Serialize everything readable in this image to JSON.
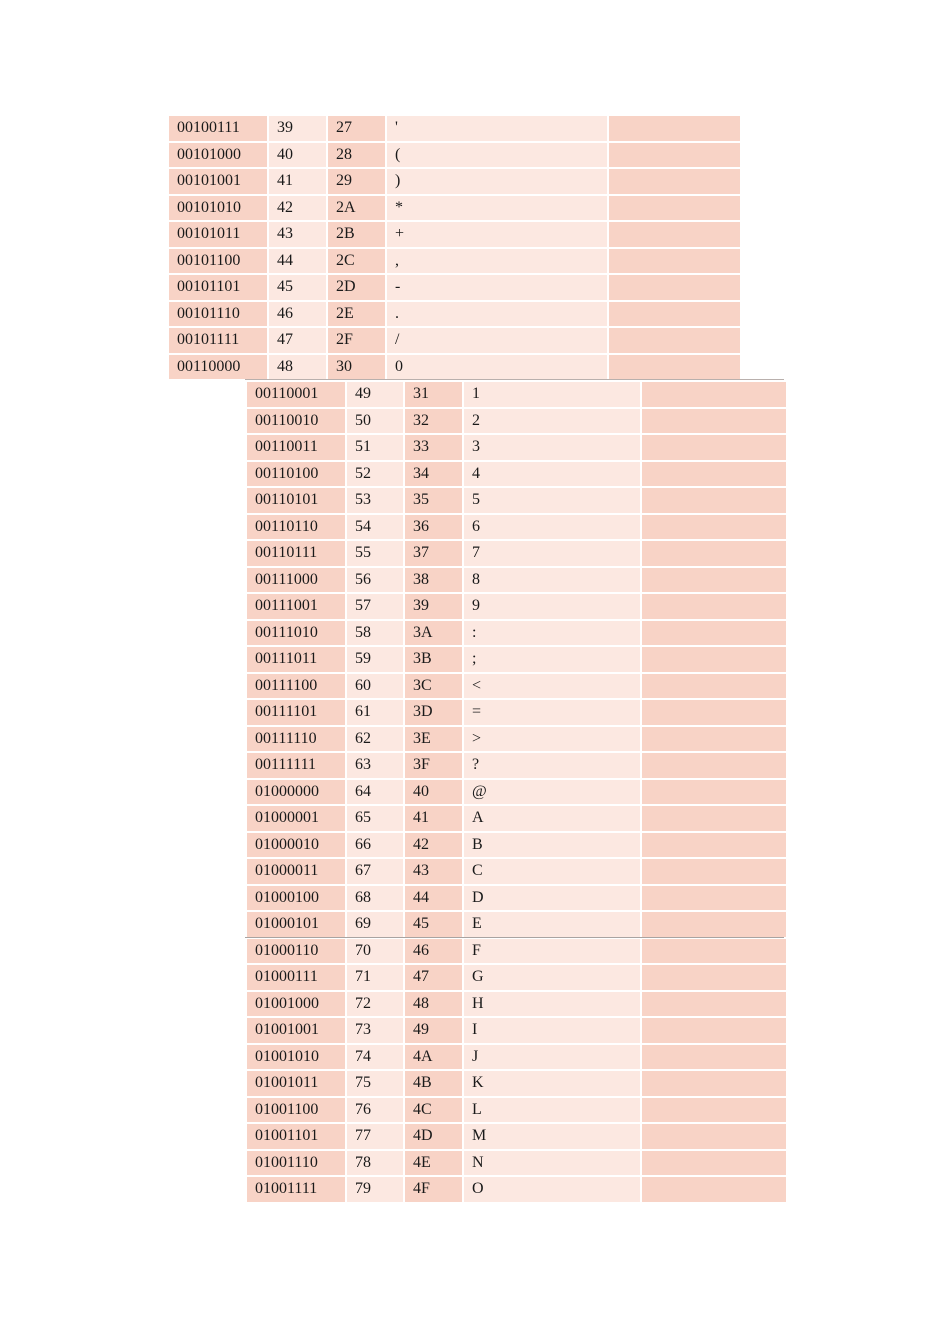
{
  "tables": [
    {
      "rows": [
        {
          "bin": "00100111",
          "dec": "39",
          "hex": "27",
          "chr": "'"
        },
        {
          "bin": "00101000",
          "dec": "40",
          "hex": "28",
          "chr": "("
        },
        {
          "bin": "00101001",
          "dec": "41",
          "hex": "29",
          "chr": ")"
        },
        {
          "bin": "00101010",
          "dec": "42",
          "hex": "2A",
          "chr": "*"
        },
        {
          "bin": "00101011",
          "dec": "43",
          "hex": "2B",
          "chr": "+"
        },
        {
          "bin": "00101100",
          "dec": "44",
          "hex": "2C",
          "chr": ","
        },
        {
          "bin": "00101101",
          "dec": "45",
          "hex": "2D",
          "chr": "-"
        },
        {
          "bin": "00101110",
          "dec": "46",
          "hex": "2E",
          "chr": "."
        },
        {
          "bin": "00101111",
          "dec": "47",
          "hex": "2F",
          "chr": "/"
        },
        {
          "bin": "00110000",
          "dec": "48",
          "hex": "30",
          "chr": "0"
        }
      ]
    },
    {
      "rows": [
        {
          "bin": "00110001",
          "dec": "49",
          "hex": "31",
          "chr": "1"
        },
        {
          "bin": "00110010",
          "dec": "50",
          "hex": "32",
          "chr": "2"
        },
        {
          "bin": "00110011",
          "dec": "51",
          "hex": "33",
          "chr": "3"
        },
        {
          "bin": "00110100",
          "dec": "52",
          "hex": "34",
          "chr": "4"
        },
        {
          "bin": "00110101",
          "dec": "53",
          "hex": "35",
          "chr": "5"
        },
        {
          "bin": "00110110",
          "dec": "54",
          "hex": "36",
          "chr": "6"
        },
        {
          "bin": "00110111",
          "dec": "55",
          "hex": "37",
          "chr": "7"
        },
        {
          "bin": "00111000",
          "dec": "56",
          "hex": "38",
          "chr": "8"
        },
        {
          "bin": "00111001",
          "dec": "57",
          "hex": "39",
          "chr": "9"
        },
        {
          "bin": "00111010",
          "dec": "58",
          "hex": "3A",
          "chr": ":"
        },
        {
          "bin": "00111011",
          "dec": "59",
          "hex": "3B",
          "chr": ";"
        },
        {
          "bin": "00111100",
          "dec": "60",
          "hex": "3C",
          "chr": "<"
        },
        {
          "bin": "00111101",
          "dec": "61",
          "hex": "3D",
          "chr": "="
        },
        {
          "bin": "00111110",
          "dec": "62",
          "hex": "3E",
          "chr": ">"
        },
        {
          "bin": "00111111",
          "dec": "63",
          "hex": "3F",
          "chr": "?"
        },
        {
          "bin": "01000000",
          "dec": "64",
          "hex": "40",
          "chr": "@"
        },
        {
          "bin": "01000001",
          "dec": "65",
          "hex": "41",
          "chr": "A"
        },
        {
          "bin": "01000010",
          "dec": "66",
          "hex": "42",
          "chr": "B"
        },
        {
          "bin": "01000011",
          "dec": "67",
          "hex": "43",
          "chr": "C"
        },
        {
          "bin": "01000100",
          "dec": "68",
          "hex": "44",
          "chr": "D"
        },
        {
          "bin": "01000101",
          "dec": "69",
          "hex": "45",
          "chr": "E"
        },
        {
          "bin": "01000110",
          "dec": "70",
          "hex": "46",
          "chr": "F"
        },
        {
          "bin": "01000111",
          "dec": "71",
          "hex": "47",
          "chr": "G"
        },
        {
          "bin": "01001000",
          "dec": "72",
          "hex": "48",
          "chr": "H"
        },
        {
          "bin": "01001001",
          "dec": "73",
          "hex": "49",
          "chr": "I"
        },
        {
          "bin": "01001010",
          "dec": "74",
          "hex": "4A",
          "chr": "J"
        },
        {
          "bin": "01001011",
          "dec": "75",
          "hex": "4B",
          "chr": "K"
        },
        {
          "bin": "01001100",
          "dec": "76",
          "hex": "4C",
          "chr": "L"
        },
        {
          "bin": "01001101",
          "dec": "77",
          "hex": "4D",
          "chr": "M"
        },
        {
          "bin": "01001110",
          "dec": "78",
          "hex": "4E",
          "chr": "N"
        },
        {
          "bin": "01001111",
          "dec": "79",
          "hex": "4F",
          "chr": "O"
        }
      ]
    }
  ],
  "colors": {
    "dark_cell": "#f8d3c6",
    "light_cell": "#fce8e1"
  }
}
